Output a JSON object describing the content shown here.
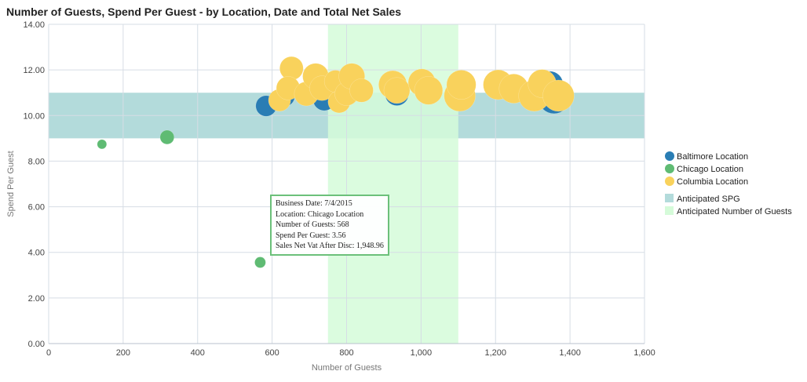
{
  "chart_data": {
    "type": "scatter",
    "title": "Number of Guests, Spend Per Guest - by Location, Date and Total Net Sales",
    "xlabel": "Number of Guests",
    "ylabel": "Spend Per Guest",
    "xlim": [
      0,
      1600
    ],
    "ylim": [
      0,
      14
    ],
    "x_ticks": [
      "0",
      "200",
      "400",
      "600",
      "800",
      "1,000",
      "1,200",
      "1,400",
      "1,600"
    ],
    "y_ticks": [
      "0.00",
      "2.00",
      "4.00",
      "6.00",
      "8.00",
      "10.00",
      "12.00",
      "14.00"
    ],
    "grid": true,
    "legend_position": "right",
    "bands": [
      {
        "name": "Anticipated SPG",
        "axis": "y",
        "from": 9,
        "to": 11,
        "color": "#b3dbdb"
      },
      {
        "name": "Anticipated Number of Guests",
        "axis": "x",
        "from": 750,
        "to": 1100,
        "color": "#d5fbd9"
      }
    ],
    "series": [
      {
        "name": "Baltimore Location",
        "color": "#2a7db4",
        "points": [
          {
            "x": 584,
            "y": 10.42,
            "z": 7000
          },
          {
            "x": 633,
            "y": 10.85,
            "z": 7000
          },
          {
            "x": 740,
            "y": 10.7,
            "z": 8000
          },
          {
            "x": 935,
            "y": 10.95,
            "z": 9000
          },
          {
            "x": 1100,
            "y": 11.2,
            "z": 9000
          },
          {
            "x": 1345,
            "y": 11.35,
            "z": 12000
          },
          {
            "x": 1357,
            "y": 10.77,
            "z": 16000
          }
        ]
      },
      {
        "name": "Chicago Location",
        "color": "#5fbb73",
        "points": [
          {
            "x": 143,
            "y": 8.74,
            "z": 1400
          },
          {
            "x": 318,
            "y": 9.05,
            "z": 3200
          },
          {
            "x": 568,
            "y": 3.56,
            "z": 1948.96
          }
        ]
      },
      {
        "name": "Columbia Location",
        "color": "#f9d25c",
        "points": [
          {
            "x": 620,
            "y": 10.67,
            "z": 8000
          },
          {
            "x": 652,
            "y": 12.07,
            "z": 9000
          },
          {
            "x": 643,
            "y": 11.2,
            "z": 9000
          },
          {
            "x": 692,
            "y": 10.95,
            "z": 9500
          },
          {
            "x": 717,
            "y": 11.72,
            "z": 11000
          },
          {
            "x": 734,
            "y": 11.2,
            "z": 10000
          },
          {
            "x": 770,
            "y": 11.5,
            "z": 8000
          },
          {
            "x": 780,
            "y": 10.6,
            "z": 8000
          },
          {
            "x": 800,
            "y": 10.95,
            "z": 9000
          },
          {
            "x": 814,
            "y": 11.72,
            "z": 11000
          },
          {
            "x": 840,
            "y": 11.1,
            "z": 9000
          },
          {
            "x": 924,
            "y": 11.35,
            "z": 13000
          },
          {
            "x": 935,
            "y": 11.1,
            "z": 11000
          },
          {
            "x": 1002,
            "y": 11.45,
            "z": 12000
          },
          {
            "x": 1020,
            "y": 11.1,
            "z": 13000
          },
          {
            "x": 1104,
            "y": 10.87,
            "z": 16000
          },
          {
            "x": 1108,
            "y": 11.35,
            "z": 14000
          },
          {
            "x": 1207,
            "y": 11.35,
            "z": 14500
          },
          {
            "x": 1249,
            "y": 11.18,
            "z": 14000
          },
          {
            "x": 1304,
            "y": 10.87,
            "z": 16000
          },
          {
            "x": 1325,
            "y": 11.4,
            "z": 13000
          },
          {
            "x": 1369,
            "y": 10.87,
            "z": 16000
          }
        ]
      }
    ]
  },
  "tooltip": {
    "lines": [
      "Business Date: 7/4/2015",
      "Location: Chicago Location",
      "Number of Guests: 568",
      "Spend Per Guest: 3.56",
      "Sales Net Vat After Disc: 1,948.96"
    ]
  }
}
